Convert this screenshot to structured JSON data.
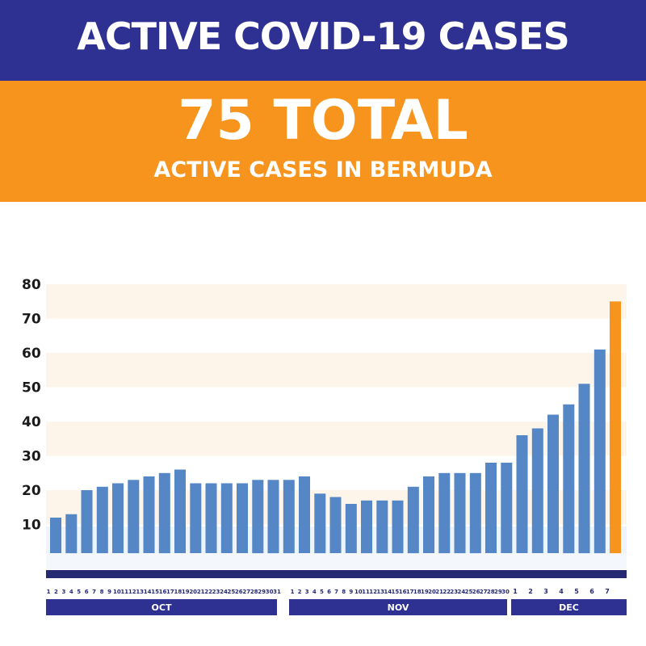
{
  "header": {
    "title": "ACTIVE COVID-19 CASES"
  },
  "banner": {
    "total": "75 TOTAL",
    "subtitle": "ACTIVE CASES IN BERMUDA"
  },
  "colors": {
    "navy": "#2e3192",
    "orange": "#f7941d",
    "bar": "#5586c6",
    "highlight": "#f7941d",
    "band": "#fdf5e9",
    "base": "#eef4fb"
  },
  "chart_data": {
    "type": "bar",
    "title": "",
    "xlabel": "",
    "ylabel": "",
    "ylim": [
      0,
      80
    ],
    "yticks": [
      "10",
      "20",
      "30",
      "40",
      "50",
      "60",
      "70",
      "80"
    ],
    "grid": false,
    "categories": [
      "1",
      "2",
      "3",
      "4",
      "5",
      "6",
      "7",
      "8",
      "9",
      "10",
      "11",
      "12",
      "13",
      "14",
      "15",
      "16",
      "17",
      "18",
      "19",
      "20",
      "21",
      "22",
      "23",
      "24",
      "25",
      "26",
      "27",
      "28",
      "29",
      "30",
      "31",
      "1",
      "2",
      "3",
      "4",
      "5",
      "6",
      "7",
      "8",
      "9",
      "10",
      "11",
      "12",
      "13",
      "14",
      "15",
      "16",
      "17",
      "18",
      "19",
      "20",
      "21",
      "22",
      "23",
      "24",
      "25",
      "26",
      "27",
      "28",
      "29",
      "30",
      "1",
      "2",
      "3",
      "4",
      "5",
      "6",
      "7"
    ],
    "months": [
      {
        "label": "OCT",
        "days": 31
      },
      {
        "label": "NOV",
        "days": 30
      },
      {
        "label": "DEC",
        "days": 7
      }
    ],
    "bars": [
      {
        "date": "Oct 1-2",
        "value": 12
      },
      {
        "date": "Oct 3-4",
        "value": 13
      },
      {
        "date": "Oct 5-6",
        "value": 20
      },
      {
        "date": "Oct 7-8",
        "value": 21
      },
      {
        "date": "Oct 9-10",
        "value": 22
      },
      {
        "date": "Oct 11-12",
        "value": 23
      },
      {
        "date": "Oct 13-14",
        "value": 24
      },
      {
        "date": "Oct 15-16",
        "value": 25
      },
      {
        "date": "Oct 17-18",
        "value": 26
      },
      {
        "date": "Oct 19-20",
        "value": 22
      },
      {
        "date": "Oct 21-22",
        "value": 22
      },
      {
        "date": "Oct 23-24",
        "value": 22
      },
      {
        "date": "Oct 25-26",
        "value": 22
      },
      {
        "date": "Oct 27-28",
        "value": 23
      },
      {
        "date": "Oct 29-30",
        "value": 23
      },
      {
        "date": "Oct 31",
        "value": 23
      },
      {
        "date": "Nov 1-3",
        "value": 24
      },
      {
        "date": "Nov 4-6",
        "value": 19
      },
      {
        "date": "Nov 7-8",
        "value": 18
      },
      {
        "date": "Nov 9-10",
        "value": 16
      },
      {
        "date": "Nov 11-12",
        "value": 17
      },
      {
        "date": "Nov 13-14",
        "value": 17
      },
      {
        "date": "Nov 15-16",
        "value": 17
      },
      {
        "date": "Nov 17-18",
        "value": 21
      },
      {
        "date": "Nov 19-20",
        "value": 24
      },
      {
        "date": "Nov 21-22",
        "value": 25
      },
      {
        "date": "Nov 23-24",
        "value": 25
      },
      {
        "date": "Nov 25-26",
        "value": 25
      },
      {
        "date": "Nov 27-28",
        "value": 28
      },
      {
        "date": "Nov 29-30",
        "value": 28
      },
      {
        "date": "Dec 1",
        "value": 36
      },
      {
        "date": "Dec 2",
        "value": 38
      },
      {
        "date": "Dec 3",
        "value": 42
      },
      {
        "date": "Dec 4",
        "value": 45
      },
      {
        "date": "Dec 5",
        "value": 51
      },
      {
        "date": "Dec 6",
        "value": 61
      },
      {
        "date": "Dec 7",
        "value": 75,
        "highlight": true
      }
    ]
  }
}
